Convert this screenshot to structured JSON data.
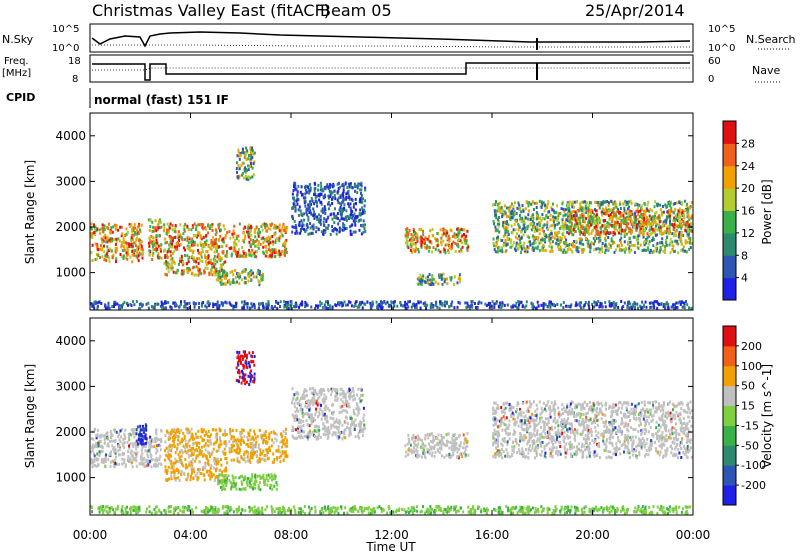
{
  "chart_data": {
    "type": "heatmap",
    "title": "Christmas Valley East (fitACF)",
    "beam_label": "Beam 05",
    "date": "25/Apr/2014",
    "xlabel": "Time UT",
    "x_ticks": [
      "00:00",
      "04:00",
      "08:00",
      "12:00",
      "16:00",
      "20:00",
      "00:00"
    ],
    "xlim_hours": [
      0,
      24
    ],
    "header": {
      "nsky_label": "N.Sky",
      "nsky_ticks": [
        "10^5",
        "10^0"
      ],
      "nsearch_label": "N.Search",
      "freq_label": "Freq.",
      "freq_unit": "[MHz]",
      "freq_ticks": [
        "18",
        "8"
      ],
      "nave_label": "Nave",
      "nave_ticks": [
        "60",
        "0"
      ],
      "cpid_label": "CPID",
      "cpid_value": "normal (fast) 151 IF"
    },
    "panels": [
      {
        "quantity": "Power",
        "ylabel": "Slant Range [km]",
        "y_ticks": [
          1000,
          2000,
          3000,
          4000
        ],
        "ylim": [
          180,
          4500
        ],
        "colorbar_label": "Power [dB]",
        "colorbar_ticks": [
          "4",
          "8",
          "12",
          "16",
          "20",
          "24",
          "28"
        ],
        "colors": [
          "#1f1fe6",
          "#2d55b4",
          "#2e8a6e",
          "#3ab04a",
          "#b4cc30",
          "#f0a000",
          "#f06018",
          "#e01010"
        ],
        "bands": [
          {
            "t": [
              0.0,
              2.15
            ],
            "r": [
              1200,
              2100
            ],
            "weight": "strong"
          },
          {
            "t": [
              2.3,
              2.9
            ],
            "r": [
              1250,
              2200
            ],
            "weight": "strong"
          },
          {
            "t": [
              2.9,
              5.5
            ],
            "r": [
              900,
              2100
            ],
            "weight": "strong"
          },
          {
            "t": [
              5.5,
              7.9
            ],
            "r": [
              1300,
              2100
            ],
            "weight": "strong"
          },
          {
            "t": [
              5.8,
              6.6
            ],
            "r": [
              3000,
              3800
            ],
            "weight": "mid"
          },
          {
            "t": [
              5.0,
              7.0
            ],
            "r": [
              700,
              1100
            ],
            "weight": "mid"
          },
          {
            "t": [
              8.0,
              11.0
            ],
            "r": [
              1800,
              3000
            ],
            "weight": "weak"
          },
          {
            "t": [
              12.5,
              15.1
            ],
            "r": [
              1400,
              2000
            ],
            "weight": "strong"
          },
          {
            "t": [
              13.0,
              14.8
            ],
            "r": [
              700,
              1000
            ],
            "weight": "mid"
          },
          {
            "t": [
              16.0,
              24.0
            ],
            "r": [
              1400,
              2600
            ],
            "weight": "mid"
          },
          {
            "t": [
              19.0,
              24.0
            ],
            "r": [
              1800,
              2400
            ],
            "weight": "strong"
          },
          {
            "t": [
              0.0,
              24.0
            ],
            "r": [
              180,
              400
            ],
            "weight": "weak"
          }
        ]
      },
      {
        "quantity": "Velocity",
        "ylabel": "Slant Range [km]",
        "y_ticks": [
          1000,
          2000,
          3000,
          4000
        ],
        "ylim": [
          180,
          4500
        ],
        "colorbar_label": "Velocity [m s^-1]",
        "colorbar_ticks": [
          "200",
          "100",
          "50",
          "15",
          "-15",
          "-50",
          "-100",
          "-200"
        ],
        "colors": [
          "#1f1fe6",
          "#2d55b4",
          "#2e8a6e",
          "#3ab04a",
          "#7ed040",
          "#c0c0c0",
          "#f0a000",
          "#f06018",
          "#e01010"
        ],
        "bands": [
          {
            "t": [
              0.0,
              2.9
            ],
            "r": [
              1200,
              2100
            ],
            "weight": "gray"
          },
          {
            "t": [
              1.8,
              2.3
            ],
            "r": [
              1700,
              2200
            ],
            "weight": "blue"
          },
          {
            "t": [
              2.9,
              5.5
            ],
            "r": [
              900,
              2100
            ],
            "weight": "orange"
          },
          {
            "t": [
              5.5,
              7.9
            ],
            "r": [
              1300,
              2100
            ],
            "weight": "orange"
          },
          {
            "t": [
              5.8,
              6.6
            ],
            "r": [
              3000,
              3800
            ],
            "weight": "red"
          },
          {
            "t": [
              5.0,
              7.5
            ],
            "r": [
              700,
              1100
            ],
            "weight": "green"
          },
          {
            "t": [
              8.0,
              11.0
            ],
            "r": [
              1800,
              3000
            ],
            "weight": "gray"
          },
          {
            "t": [
              12.5,
              15.1
            ],
            "r": [
              1400,
              2000
            ],
            "weight": "gray"
          },
          {
            "t": [
              16.0,
              24.0
            ],
            "r": [
              1400,
              2700
            ],
            "weight": "gray"
          },
          {
            "t": [
              0.0,
              24.0
            ],
            "r": [
              180,
              400
            ],
            "weight": "green"
          }
        ]
      }
    ]
  }
}
